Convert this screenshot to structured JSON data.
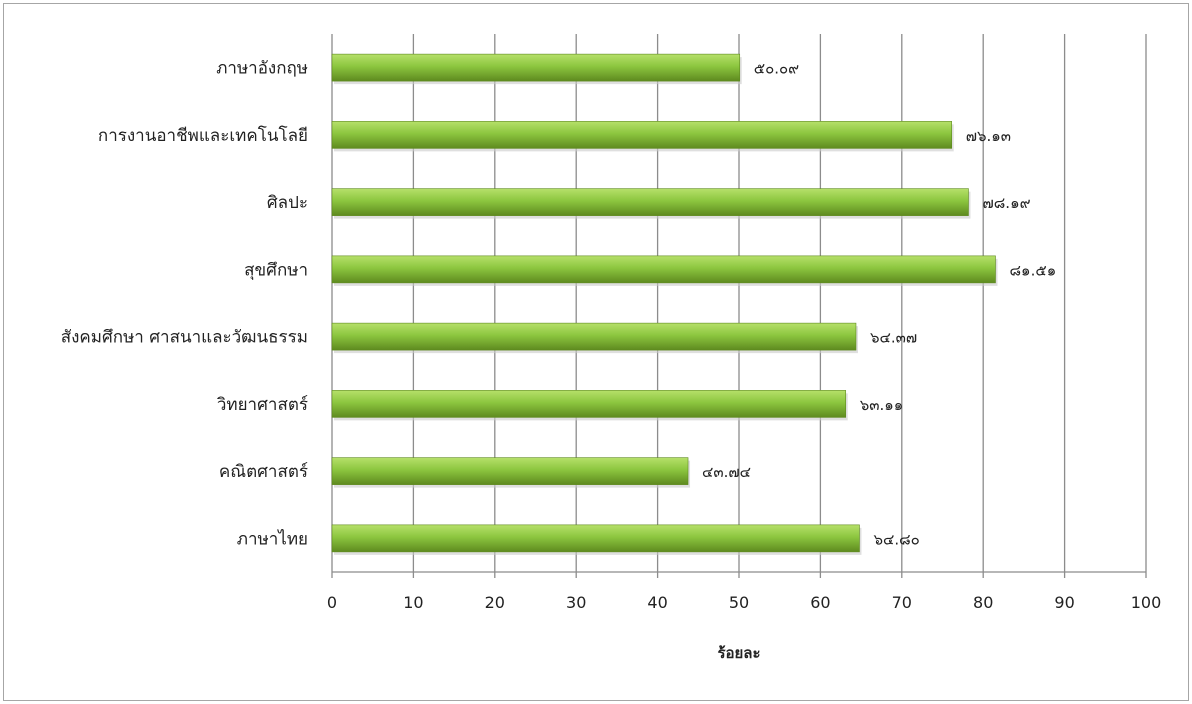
{
  "chart_data": {
    "type": "bar",
    "orientation": "horizontal",
    "categories": [
      "ภาษาอังกฤษ",
      "การงานอาชีพและเทคโนโลยี",
      "ศิลปะ",
      "สุขศึกษา",
      "สังคมศึกษา ศาสนาและวัฒนธรรม",
      "วิทยาศาสตร์",
      "คณิตศาสตร์",
      "ภาษาไทย"
    ],
    "values": [
      50.09,
      76.13,
      78.19,
      81.51,
      64.37,
      63.11,
      43.74,
      64.8
    ],
    "data_labels": [
      "๕๐.๐๙",
      "๗๖.๑๓",
      "๗๘.๑๙",
      "๘๑.๕๑",
      "๖๔.๓๗",
      "๖๓.๑๑",
      "๔๓.๗๔",
      "๖๔.๘๐"
    ],
    "title": "",
    "xlabel": "ร้อยละ",
    "ylabel": "",
    "xlim": [
      0,
      100
    ],
    "xticks": [
      "0",
      "10",
      "20",
      "30",
      "40",
      "50",
      "60",
      "70",
      "80",
      "90",
      "100"
    ],
    "grid": "vertical",
    "legend": "none",
    "colors": {
      "bar": "#8cc63f",
      "bar_dark": "#5e8a1f",
      "grid": "#8c8c8c"
    }
  }
}
